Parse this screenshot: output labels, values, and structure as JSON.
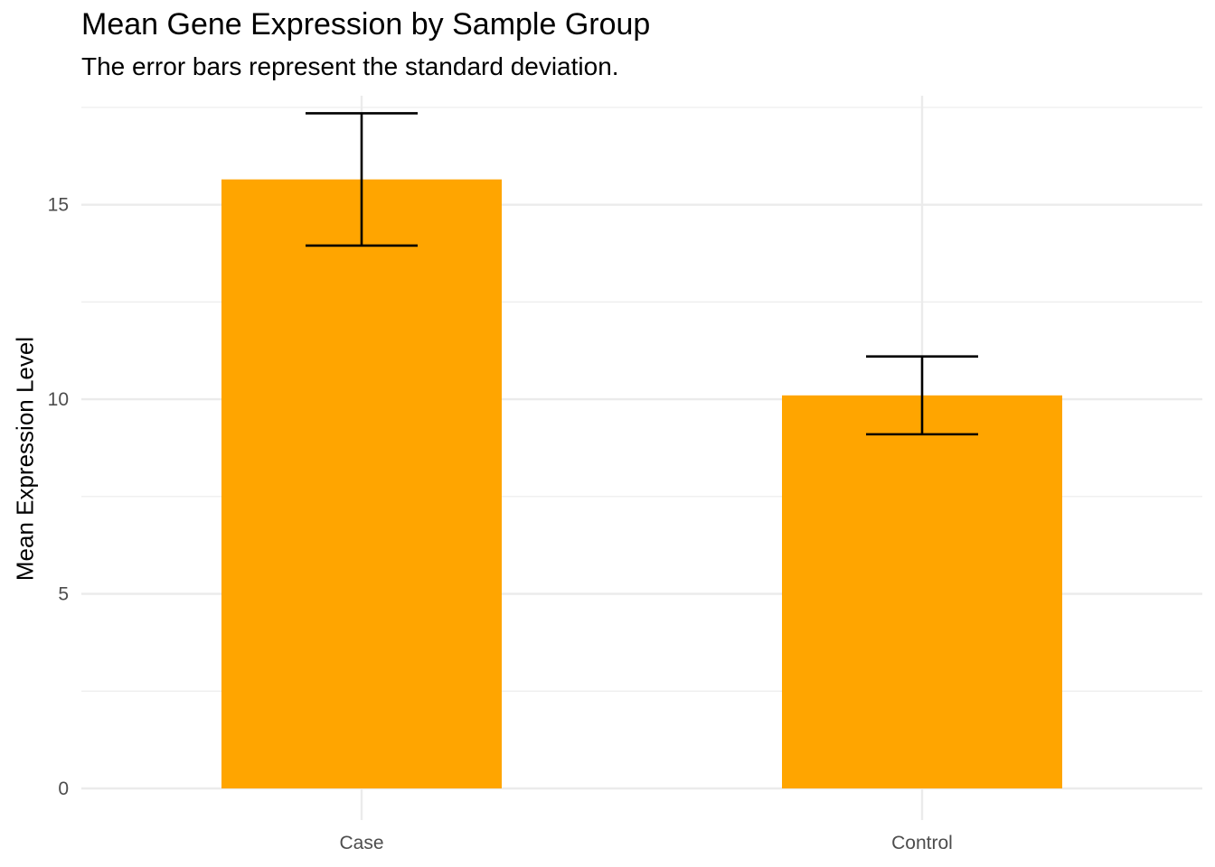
{
  "chart_data": {
    "type": "bar",
    "title": "Mean Gene Expression by Sample Group",
    "subtitle": "The error bars represent the standard deviation.",
    "xlabel": "",
    "ylabel": "Mean Expression Level",
    "categories": [
      "Case",
      "Control"
    ],
    "values": [
      15.65,
      10.1
    ],
    "error_sd": [
      1.7,
      1.0
    ],
    "ylim": [
      0,
      17.8
    ],
    "yticks": [
      0,
      5,
      10,
      15
    ],
    "ytick_labels": [
      "0",
      "5",
      "10",
      "15"
    ],
    "bar_color": "#FFA500",
    "errorbar_color": "#000000",
    "grid": true,
    "legend": "none"
  }
}
